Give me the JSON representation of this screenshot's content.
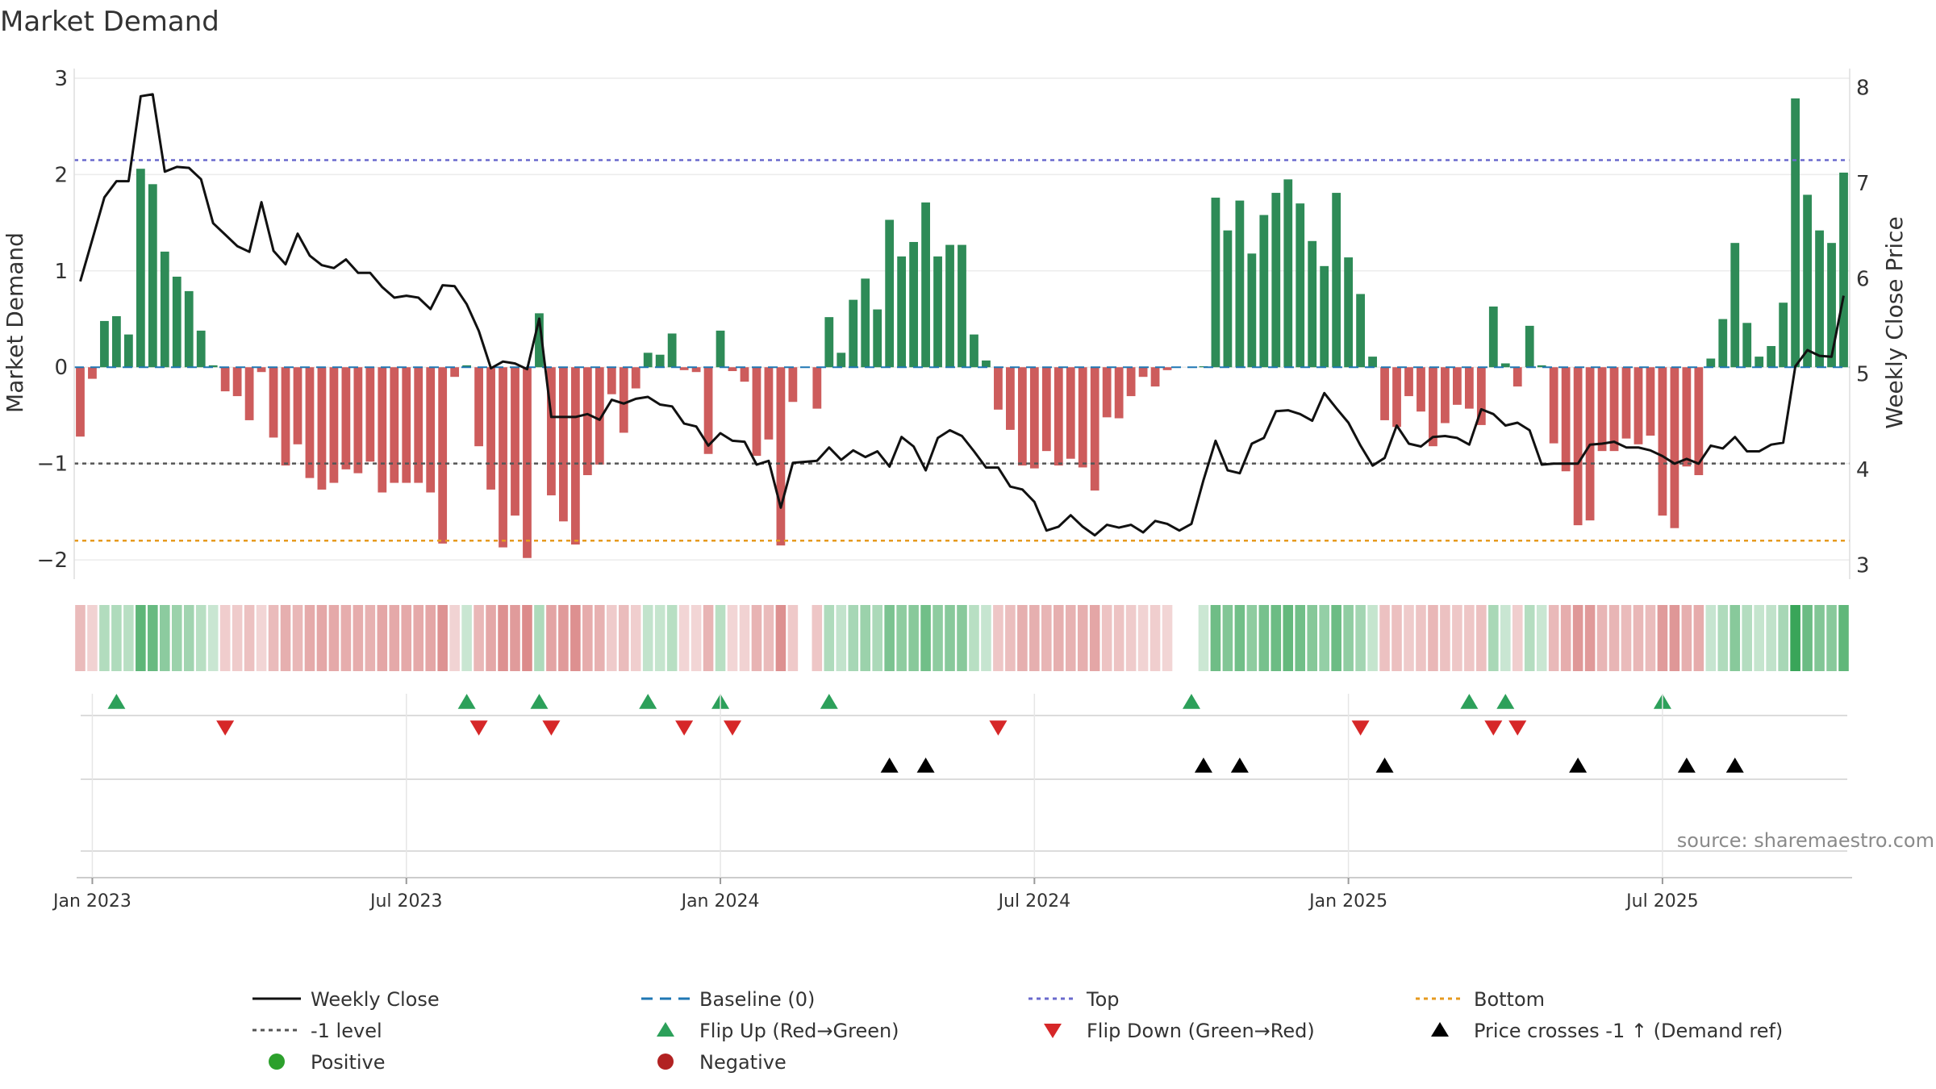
{
  "chart_data": {
    "type": "bar",
    "title": "Market Demand",
    "ylabel": "Market Demand",
    "y2label": "Weekly Close Price",
    "ylim": [
      -2.2,
      3.1
    ],
    "y2lim": [
      2.85,
      8.2
    ],
    "yticks": [
      -2,
      -1,
      0,
      1,
      2,
      3
    ],
    "y2ticks": [
      3,
      4,
      5,
      6,
      7,
      8
    ],
    "xticks": [
      "Jan 2023",
      "Jul 2023",
      "Jan 2024",
      "Jul 2024",
      "Jan 2025",
      "Jul 2025"
    ],
    "xtick_weeks": [
      1,
      27,
      53,
      79,
      105,
      131
    ],
    "reference_lines": {
      "baseline": 0,
      "top": 2.15,
      "minus_one": -1,
      "bottom": -1.8
    },
    "demand": [
      -0.72,
      -0.12,
      0.48,
      0.53,
      0.34,
      2.06,
      1.9,
      1.2,
      0.94,
      0.79,
      0.38,
      0.02,
      -0.25,
      -0.3,
      -0.55,
      -0.05,
      -0.73,
      -1.02,
      -0.8,
      -1.15,
      -1.27,
      -1.2,
      -1.06,
      -1.1,
      -0.98,
      -1.3,
      -1.2,
      -1.2,
      -1.2,
      -1.3,
      -1.83,
      -0.1,
      0.02,
      -0.82,
      -1.27,
      -1.87,
      -1.54,
      -1.98,
      0.56,
      -1.33,
      -1.6,
      -1.84,
      -1.12,
      -1.01,
      -0.28,
      -0.68,
      -0.22,
      0.15,
      0.13,
      0.35,
      -0.03,
      -0.05,
      -0.9,
      0.38,
      -0.04,
      -0.15,
      -0.92,
      -0.75,
      -1.85,
      -0.36,
      0.0,
      -0.43,
      0.52,
      0.15,
      0.7,
      0.92,
      0.6,
      1.53,
      1.15,
      1.3,
      1.71,
      1.15,
      1.27,
      1.27,
      0.34,
      0.07,
      -0.44,
      -0.65,
      -1.02,
      -1.05,
      -0.87,
      -1.02,
      -0.95,
      -1.04,
      -1.28,
      -0.52,
      -0.53,
      -0.3,
      -0.1,
      -0.2,
      -0.03,
      0.0,
      0.0,
      0.01,
      1.76,
      1.42,
      1.73,
      1.18,
      1.58,
      1.81,
      1.95,
      1.7,
      1.31,
      1.05,
      1.81,
      1.14,
      0.76,
      0.11,
      -0.55,
      -0.62,
      -0.3,
      -0.46,
      -0.82,
      -0.58,
      -0.39,
      -0.43,
      -0.6,
      0.63,
      0.04,
      -0.2,
      0.43,
      0.02,
      -0.79,
      -1.08,
      -1.64,
      -1.59,
      -0.87,
      -0.87,
      -0.74,
      -0.8,
      -0.71,
      -1.54,
      -1.67,
      -1.03,
      -1.12,
      0.09,
      0.5,
      1.29,
      0.46,
      0.11,
      0.22,
      0.67,
      2.79,
      1.79,
      1.42,
      1.29,
      2.02
    ],
    "price": [
      5.97,
      6.41,
      6.85,
      7.02,
      7.02,
      7.91,
      7.93,
      7.12,
      7.17,
      7.16,
      7.04,
      6.58,
      6.46,
      6.34,
      6.28,
      6.8,
      6.29,
      6.15,
      6.47,
      6.24,
      6.14,
      6.11,
      6.2,
      6.06,
      6.06,
      5.91,
      5.8,
      5.82,
      5.8,
      5.68,
      5.93,
      5.92,
      5.73,
      5.45,
      5.06,
      5.13,
      5.11,
      5.05,
      5.58,
      4.55,
      4.55,
      4.55,
      4.58,
      4.52,
      4.73,
      4.69,
      4.74,
      4.76,
      4.68,
      4.66,
      4.48,
      4.45,
      4.25,
      4.38,
      4.3,
      4.29,
      4.05,
      4.09,
      3.6,
      4.07,
      4.08,
      4.09,
      4.23,
      4.1,
      4.2,
      4.13,
      4.19,
      4.03,
      4.34,
      4.24,
      3.99,
      4.33,
      4.41,
      4.35,
      4.19,
      4.02,
      4.02,
      3.82,
      3.79,
      3.66,
      3.36,
      3.4,
      3.52,
      3.4,
      3.31,
      3.42,
      3.39,
      3.42,
      3.34,
      3.46,
      3.43,
      3.36,
      3.43,
      3.89,
      4.3,
      3.99,
      3.96,
      4.27,
      4.33,
      4.61,
      4.62,
      4.58,
      4.51,
      4.8,
      4.64,
      4.49,
      4.25,
      4.04,
      4.12,
      4.46,
      4.27,
      4.24,
      4.34,
      4.35,
      4.33,
      4.26,
      4.63,
      4.58,
      4.46,
      4.49,
      4.41,
      4.05,
      4.06,
      4.06,
      4.06,
      4.26,
      4.27,
      4.29,
      4.23,
      4.23,
      4.2,
      4.14,
      4.06,
      4.11,
      4.06,
      4.25,
      4.22,
      4.34,
      4.19,
      4.19,
      4.26,
      4.28,
      5.08,
      5.25,
      5.19,
      5.18,
      5.82
    ],
    "flip_up_weeks": [
      3,
      32,
      38,
      47,
      53,
      62,
      92,
      115,
      118,
      131
    ],
    "flip_down_weeks": [
      12,
      33,
      39,
      50,
      54,
      76,
      106,
      117,
      119
    ],
    "price_cross_weeks": [
      67,
      70,
      93,
      96,
      108,
      124,
      133,
      137
    ],
    "legend": [
      "Weekly Close",
      "Baseline (0)",
      "Top",
      "Bottom",
      "-1 level",
      "Flip Up (Red→Green)",
      "Flip Down (Green→Red)",
      "Price crosses -1 ↑ (Demand ref)",
      "Positive",
      "Negative"
    ],
    "source": "source: sharemaestro.com"
  },
  "colors": {
    "positive": "#2e8b57",
    "negative": "#cd5c5c",
    "price_line": "#111111",
    "baseline": "#1f77b4",
    "top_line": "#6a6acd",
    "minus_one_line": "#555555",
    "bottom_line": "#e69a1f",
    "flip_up": "#2ca05a",
    "flip_down": "#d62728",
    "cross": "#000000",
    "positive_dot": "#2ca02c",
    "negative_dot": "#b22222",
    "grid": "#ececec"
  }
}
